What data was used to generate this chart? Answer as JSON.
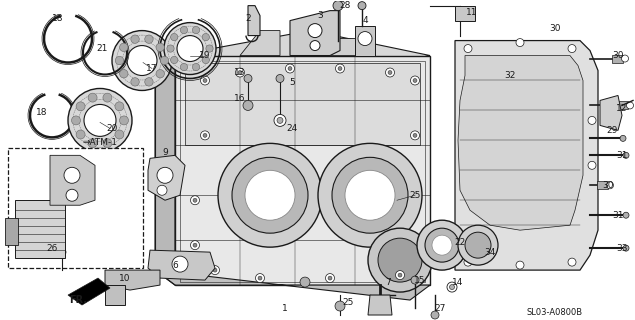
{
  "background_color": "#ffffff",
  "figsize": [
    6.35,
    3.2
  ],
  "dpi": 100,
  "diagram_ref": "SL03-A0800B",
  "line_color": "#1a1a1a",
  "gray_fill": "#c8c8c8",
  "light_gray": "#e0e0e0",
  "mid_gray": "#b0b0b0"
}
